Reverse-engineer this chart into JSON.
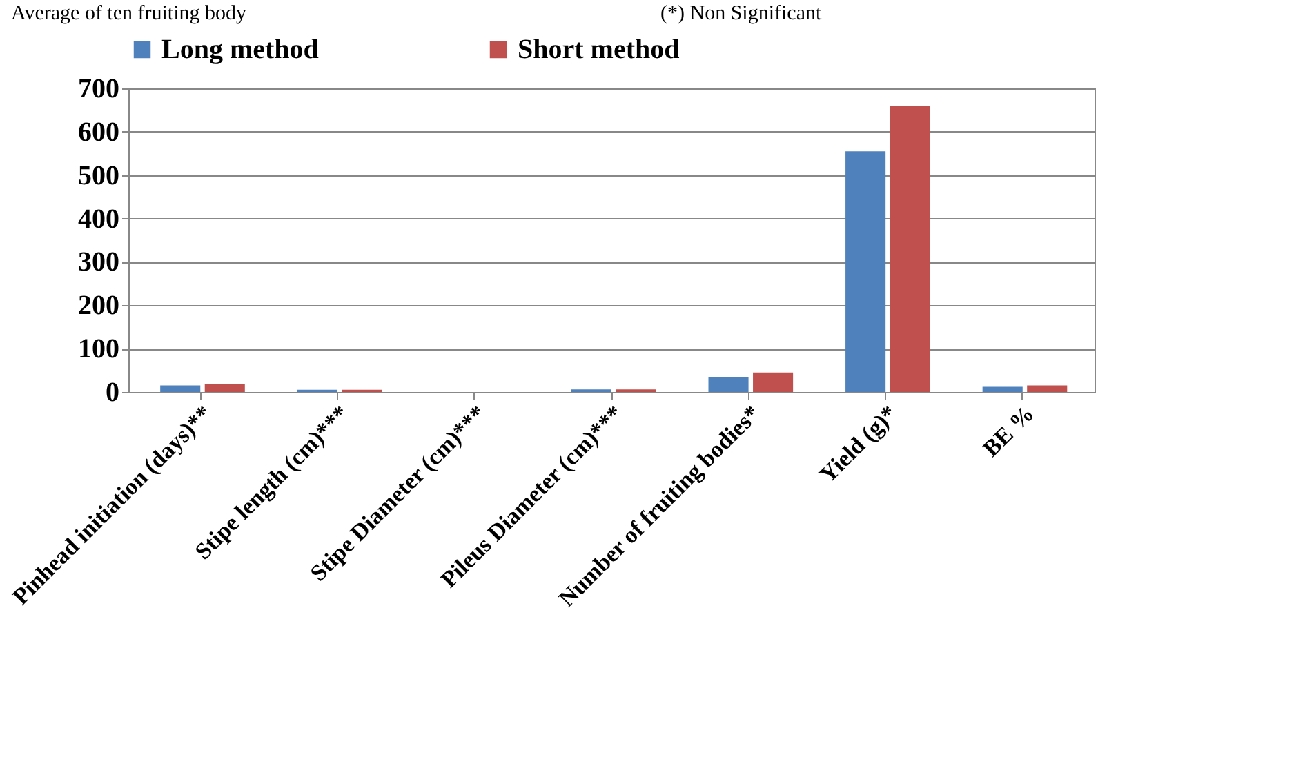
{
  "chart_data": {
    "type": "bar",
    "annotations": [
      "Average of ten fruiting body",
      "(*) Non Significant"
    ],
    "categories": [
      "Pinhead initiation (days)**",
      "Stipe length (cm)***",
      "Stipe Diameter (cm)***",
      "Pileus Diameter (cm)***",
      "Number of fruiting bodies*",
      "Yield (g)*",
      "BE %"
    ],
    "series": [
      {
        "name": "Long method",
        "color": "#4f81bd",
        "values": [
          15,
          5,
          null,
          6,
          35,
          555,
          12
        ]
      },
      {
        "name": "Short method",
        "color": "#c0504d",
        "values": [
          18,
          5,
          null,
          6,
          45,
          660,
          15
        ]
      }
    ],
    "ylim": [
      0,
      700
    ],
    "yticks": [
      0,
      100,
      200,
      300,
      400,
      500,
      600,
      700
    ],
    "grid": "y",
    "legend": "top"
  }
}
